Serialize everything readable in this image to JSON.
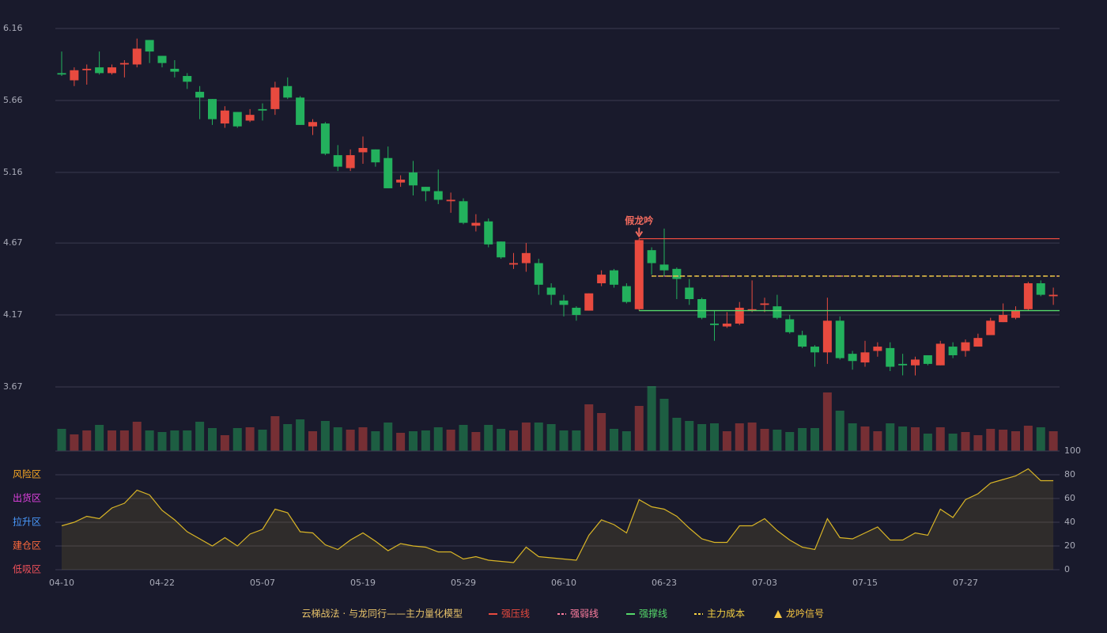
{
  "chart_data": {
    "type": "candlestick",
    "title": "云梯战法 · 与龙同行——主力量化模型",
    "title_color": "#e9c46a",
    "up_color": "#e84a3f",
    "down_color": "#23b15d",
    "categories": [
      "04-10",
      null,
      null,
      null,
      null,
      null,
      null,
      null,
      "04-22",
      null,
      null,
      null,
      null,
      null,
      null,
      null,
      "05-07",
      null,
      null,
      null,
      null,
      null,
      null,
      null,
      "05-19",
      null,
      null,
      null,
      null,
      null,
      null,
      null,
      "05-29",
      null,
      null,
      null,
      null,
      null,
      null,
      null,
      "06-10",
      null,
      null,
      null,
      null,
      null,
      null,
      null,
      "06-23",
      null,
      null,
      null,
      null,
      null,
      null,
      null,
      "07-03",
      null,
      null,
      null,
      null,
      null,
      null,
      null,
      "07-15",
      null,
      null,
      null,
      null,
      null,
      null,
      null,
      "07-27",
      null,
      null,
      null,
      null,
      null,
      null,
      null
    ],
    "open": [
      5.85,
      5.8,
      5.87,
      5.89,
      5.85,
      5.91,
      5.91,
      6.08,
      5.97,
      5.88,
      5.83,
      5.72,
      5.67,
      5.5,
      5.58,
      5.52,
      5.6,
      5.6,
      5.76,
      5.68,
      5.48,
      5.5,
      5.28,
      5.19,
      5.3,
      5.32,
      5.26,
      5.09,
      5.16,
      5.06,
      5.03,
      4.96,
      4.96,
      4.79,
      4.82,
      4.68,
      4.52,
      4.53,
      4.53,
      4.36,
      4.27,
      4.22,
      4.2,
      4.39,
      4.48,
      4.37,
      4.21,
      4.62,
      4.52,
      4.49,
      4.36,
      4.28,
      4.11,
      4.09,
      4.11,
      4.2,
      4.24,
      4.23,
      4.14,
      4.03,
      3.95,
      3.91,
      4.13,
      3.9,
      3.84,
      3.92,
      3.94,
      3.83,
      3.82,
      3.89,
      3.82,
      3.95,
      3.92,
      3.95,
      4.03,
      4.12,
      4.15,
      4.21,
      4.39,
      4.3
    ],
    "high": [
      6.0,
      5.89,
      5.91,
      6.0,
      5.91,
      5.94,
      6.09,
      6.08,
      5.97,
      5.94,
      5.85,
      5.76,
      5.67,
      5.62,
      5.58,
      5.6,
      5.64,
      5.79,
      5.82,
      5.69,
      5.53,
      5.51,
      5.35,
      5.32,
      5.41,
      5.32,
      5.34,
      5.14,
      5.24,
      5.06,
      5.18,
      5.02,
      4.98,
      4.87,
      4.84,
      4.68,
      4.6,
      4.67,
      4.56,
      4.39,
      4.31,
      4.23,
      4.32,
      4.48,
      4.49,
      4.39,
      4.7,
      4.64,
      4.77,
      4.5,
      4.42,
      4.29,
      4.2,
      4.19,
      4.26,
      4.41,
      4.29,
      4.31,
      4.17,
      4.06,
      3.96,
      4.29,
      4.16,
      3.92,
      3.99,
      3.98,
      3.98,
      3.9,
      3.88,
      3.89,
      3.99,
      3.98,
      4.0,
      4.04,
      4.15,
      4.25,
      4.23,
      4.4,
      4.41,
      4.36
    ],
    "low": [
      5.83,
      5.76,
      5.77,
      5.84,
      5.84,
      5.82,
      5.89,
      5.92,
      5.89,
      5.82,
      5.74,
      5.53,
      5.49,
      5.47,
      5.47,
      5.51,
      5.52,
      5.56,
      5.67,
      5.49,
      5.42,
      5.28,
      5.17,
      5.17,
      5.22,
      5.2,
      5.05,
      5.06,
      5.0,
      4.96,
      4.94,
      4.88,
      4.8,
      4.75,
      4.64,
      4.56,
      4.49,
      4.47,
      4.31,
      4.24,
      4.16,
      4.13,
      4.2,
      4.37,
      4.36,
      4.25,
      4.2,
      4.45,
      4.44,
      4.28,
      4.24,
      4.14,
      3.99,
      4.08,
      4.1,
      4.19,
      4.19,
      4.14,
      4.04,
      3.94,
      3.81,
      3.83,
      3.86,
      3.79,
      3.81,
      3.88,
      3.78,
      3.75,
      3.75,
      3.82,
      3.82,
      3.87,
      3.88,
      3.95,
      4.03,
      4.12,
      4.14,
      4.2,
      4.3,
      4.24
    ],
    "close": [
      5.84,
      5.87,
      5.88,
      5.85,
      5.89,
      5.92,
      6.02,
      6.0,
      5.92,
      5.86,
      5.79,
      5.68,
      5.53,
      5.59,
      5.48,
      5.56,
      5.59,
      5.75,
      5.68,
      5.49,
      5.51,
      5.29,
      5.2,
      5.28,
      5.33,
      5.23,
      5.05,
      5.11,
      5.07,
      5.03,
      4.97,
      4.97,
      4.81,
      4.81,
      4.66,
      4.57,
      4.53,
      4.6,
      4.38,
      4.31,
      4.24,
      4.17,
      4.32,
      4.45,
      4.38,
      4.26,
      4.69,
      4.53,
      4.48,
      4.42,
      4.28,
      4.15,
      4.1,
      4.11,
      4.22,
      4.21,
      4.25,
      4.15,
      4.05,
      3.95,
      3.91,
      4.13,
      3.87,
      3.85,
      3.91,
      3.95,
      3.81,
      3.82,
      3.86,
      3.83,
      3.97,
      3.89,
      3.98,
      4.01,
      4.13,
      4.17,
      4.2,
      4.39,
      4.31,
      4.31
    ],
    "ylim": [
      3.67,
      6.16
    ],
    "yticks": [
      6.16,
      5.66,
      5.16,
      4.67,
      4.17,
      3.67
    ],
    "levels": [
      {
        "name": "强压线",
        "value": 4.7,
        "color": "#e84a3f",
        "style": "solid",
        "from": 46
      },
      {
        "name": "强弱线",
        "value": 4.44,
        "color": "#ff7ea0",
        "style": "dashed",
        "from": 47
      },
      {
        "name": "强撑线",
        "value": 4.2,
        "color": "#55d86a",
        "style": "solid",
        "from": 46
      },
      {
        "name": "主力成本",
        "value": 4.44,
        "color": "#f5d142",
        "style": "dashed",
        "from": 47
      }
    ],
    "signal": {
      "name": "龙吟信号",
      "color": "#f5c542"
    },
    "annotations": [
      {
        "text": "假龙吟",
        "index": 46,
        "color": "#f06a5e"
      }
    ],
    "volume": {
      "values": [
        28,
        21,
        26,
        33,
        26,
        26,
        37,
        26,
        24,
        26,
        26,
        37,
        29,
        20,
        29,
        30,
        27,
        44,
        34,
        40,
        25,
        38,
        30,
        27,
        30,
        25,
        36,
        23,
        25,
        26,
        30,
        27,
        33,
        24,
        33,
        28,
        26,
        36,
        36,
        34,
        26,
        26,
        59,
        48,
        28,
        25,
        57,
        82,
        66,
        42,
        38,
        34,
        35,
        25,
        35,
        36,
        28,
        27,
        24,
        29,
        29,
        74,
        51,
        35,
        31,
        25,
        35,
        31,
        30,
        22,
        30,
        22,
        24,
        20,
        28,
        27,
        25,
        32,
        30,
        25
      ]
    },
    "indicator": {
      "type": "area",
      "color": "#d9b526",
      "values": [
        37,
        40,
        45,
        43,
        52,
        56,
        67,
        63,
        50,
        42,
        32,
        26,
        20,
        27,
        20,
        30,
        34,
        51,
        48,
        32,
        31,
        21,
        17,
        25,
        31,
        24,
        16,
        22,
        20,
        19,
        15,
        15,
        9,
        11,
        8,
        7,
        6,
        19,
        11,
        10,
        9,
        8,
        29,
        42,
        38,
        31,
        59,
        53,
        51,
        45,
        35,
        26,
        23,
        23,
        37,
        37,
        43,
        33,
        25,
        19,
        17,
        43,
        27,
        26,
        31,
        36,
        25,
        25,
        31,
        29,
        51,
        44,
        59,
        64,
        73,
        76,
        79,
        85,
        75,
        75
      ],
      "ylim": [
        0,
        100
      ],
      "yticks": [
        0,
        20,
        40,
        60,
        80,
        100
      ],
      "ytick_colors": [
        "#f0505a",
        "#f5a623",
        "#4a9bff",
        "#e040e0",
        "#f5a623",
        "#3ddc4a"
      ],
      "zones": [
        {
          "name": "低吸区",
          "value": 0,
          "color": "#f0505a"
        },
        {
          "name": "建仓区",
          "value": 20,
          "color": "#ff6a3d"
        },
        {
          "name": "拉升区",
          "value": 40,
          "color": "#4a9bff"
        },
        {
          "name": "出货区",
          "value": 60,
          "color": "#e040e0"
        },
        {
          "name": "风险区",
          "value": 80,
          "color": "#f5a623"
        }
      ]
    }
  }
}
